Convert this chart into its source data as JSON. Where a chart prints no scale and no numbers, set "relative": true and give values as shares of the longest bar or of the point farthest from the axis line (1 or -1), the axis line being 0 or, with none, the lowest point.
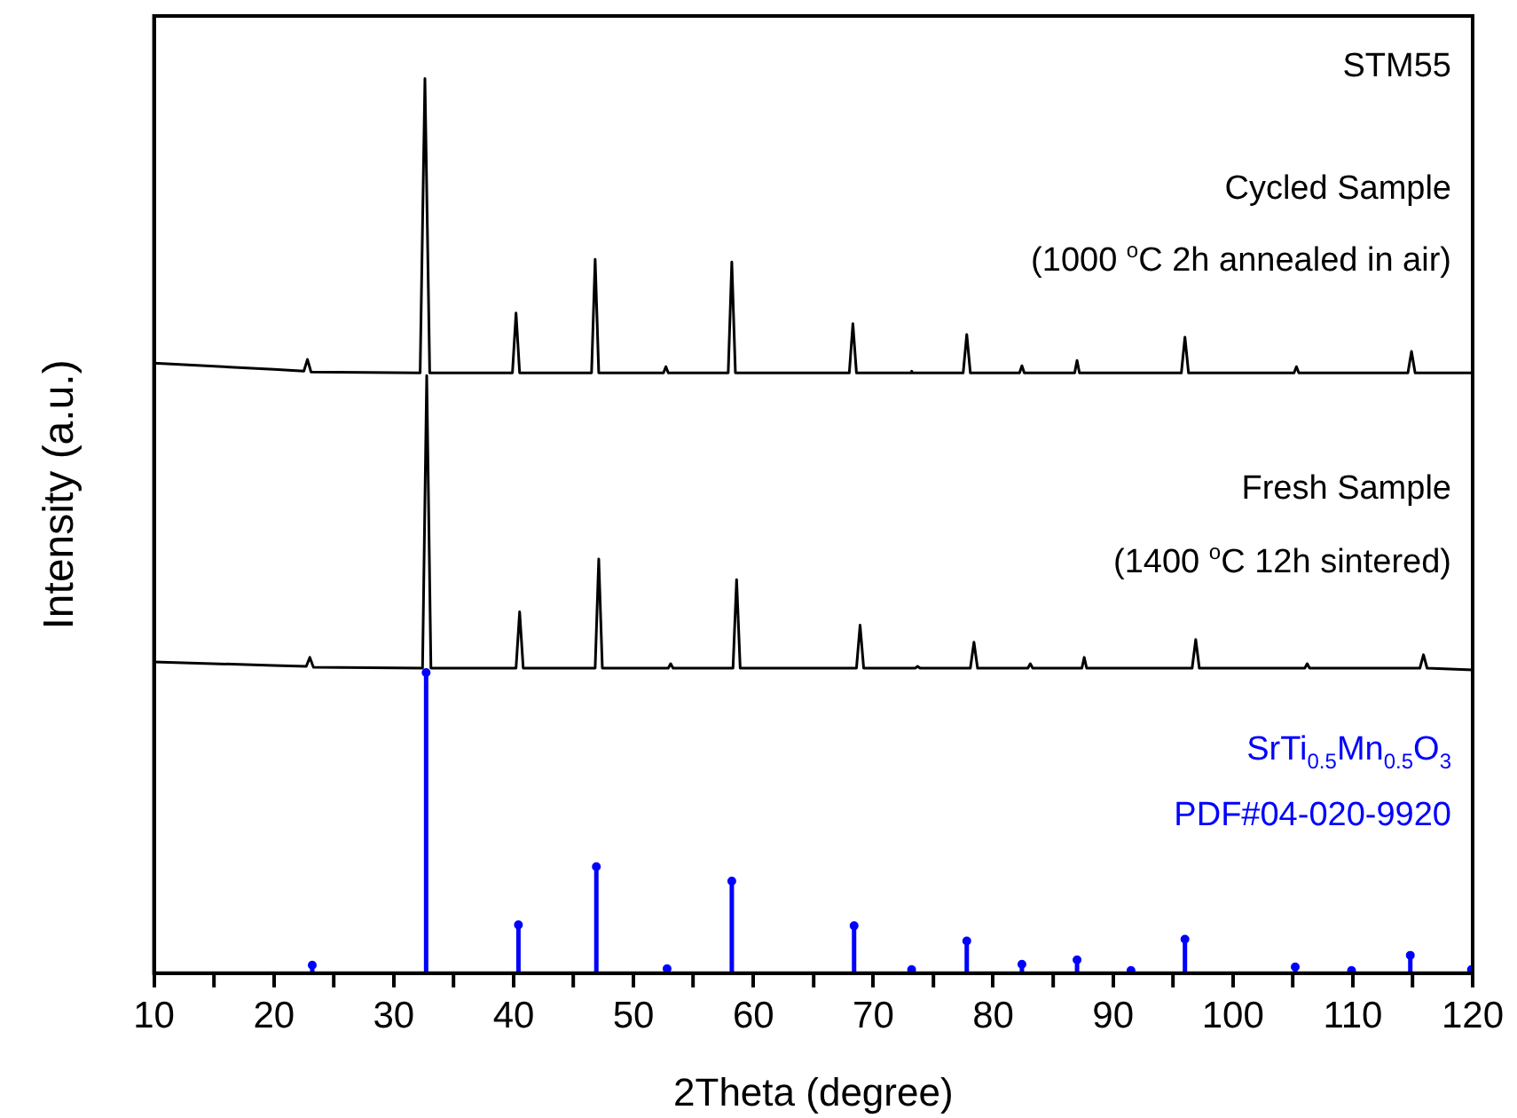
{
  "chart_data": {
    "type": "line",
    "relative": true,
    "xlabel": "2Theta (degree)",
    "ylabel": "Intensity (a.u.)",
    "xlim": [
      10,
      120
    ],
    "xticks": [
      10,
      {
        "value": 15,
        "label": null
      },
      20,
      {
        "value": 25,
        "label": null
      },
      30,
      {
        "value": 35,
        "label": null
      },
      40,
      {
        "value": 45,
        "label": null
      },
      50,
      {
        "value": 55,
        "label": null
      },
      60,
      {
        "value": 65,
        "label": null
      },
      70,
      {
        "value": 75,
        "label": null
      },
      80,
      {
        "value": 85,
        "label": null
      },
      90,
      {
        "value": 95,
        "label": null
      },
      100,
      {
        "value": 105,
        "label": null
      },
      110,
      {
        "value": 115,
        "label": null
      },
      120
    ],
    "annotations": [
      "STM55",
      "Cycled Sample",
      "(1000 $^{o}$C 2h annealed in air)",
      "Fresh Sample",
      "(1400 $^{o}$C 12h sintered)",
      "SrTi$_{0.5}$Mn$_{0.5}$O$_{3}$",
      "PDF#04-020-9920"
    ],
    "series": [
      {
        "color": "#000000",
        "x": [
          10,
          20,
          22.5,
          22.8,
          23.1,
          32.2,
          32.6,
          33.0,
          39.9,
          40.2,
          40.5,
          46.5,
          46.8,
          47.1,
          52.5,
          52.7,
          52.9,
          57.9,
          58.2,
          58.5,
          68.0,
          68.3,
          68.6,
          73.1,
          73.2,
          73.3,
          77.5,
          77.8,
          78.1,
          82.2,
          82.4,
          82.6,
          86.8,
          87.0,
          87.2,
          95.7,
          96.0,
          96.3,
          105.1,
          105.3,
          105.5,
          114.6,
          114.9,
          115.2,
          120
        ],
        "values": [
          0.682,
          0.675,
          0.673,
          0.686,
          0.672,
          0.671,
          1.0,
          0.671,
          0.671,
          0.738,
          0.671,
          0.671,
          0.798,
          0.671,
          0.671,
          0.678,
          0.671,
          0.671,
          0.795,
          0.671,
          0.671,
          0.726,
          0.671,
          0.671,
          0.673,
          0.671,
          0.671,
          0.714,
          0.671,
          0.671,
          0.679,
          0.671,
          0.671,
          0.685,
          0.671,
          0.671,
          0.711,
          0.671,
          0.671,
          0.678,
          0.671,
          0.671,
          0.695,
          0.671,
          0.671
        ]
      },
      {
        "color": "#000000",
        "x": [
          10,
          20,
          22.7,
          23.0,
          23.3,
          32.4,
          32.75,
          33.1,
          40.2,
          40.5,
          40.8,
          46.8,
          47.1,
          47.4,
          52.9,
          53.1,
          53.3,
          58.3,
          58.6,
          58.9,
          68.6,
          68.9,
          69.2,
          73.5,
          73.7,
          73.9,
          78.1,
          78.4,
          78.7,
          82.9,
          83.1,
          83.3,
          87.4,
          87.6,
          87.8,
          96.6,
          96.9,
          97.2,
          106.0,
          106.2,
          106.4,
          115.6,
          115.9,
          116.2,
          120
        ],
        "values": [
          0.348,
          0.344,
          0.343,
          0.353,
          0.342,
          0.341,
          0.668,
          0.341,
          0.341,
          0.404,
          0.341,
          0.341,
          0.463,
          0.341,
          0.341,
          0.346,
          0.341,
          0.341,
          0.44,
          0.341,
          0.341,
          0.389,
          0.341,
          0.341,
          0.343,
          0.341,
          0.341,
          0.37,
          0.341,
          0.341,
          0.346,
          0.341,
          0.341,
          0.353,
          0.341,
          0.341,
          0.373,
          0.341,
          0.341,
          0.346,
          0.341,
          0.341,
          0.356,
          0.341,
          0.339
        ]
      },
      {
        "type": "lollipop",
        "color": "#0000ff",
        "x": [
          23.2,
          32.7,
          40.4,
          46.9,
          52.8,
          58.2,
          68.4,
          73.2,
          77.8,
          82.4,
          87.0,
          91.5,
          96.0,
          105.2,
          109.9,
          114.8,
          119.9
        ],
        "values": [
          0.009,
          0.336,
          0.054,
          0.119,
          0.005,
          0.103,
          0.053,
          0.004,
          0.036,
          0.01,
          0.015,
          0.003,
          0.038,
          0.007,
          0.003,
          0.02,
          0.004
        ]
      }
    ]
  }
}
